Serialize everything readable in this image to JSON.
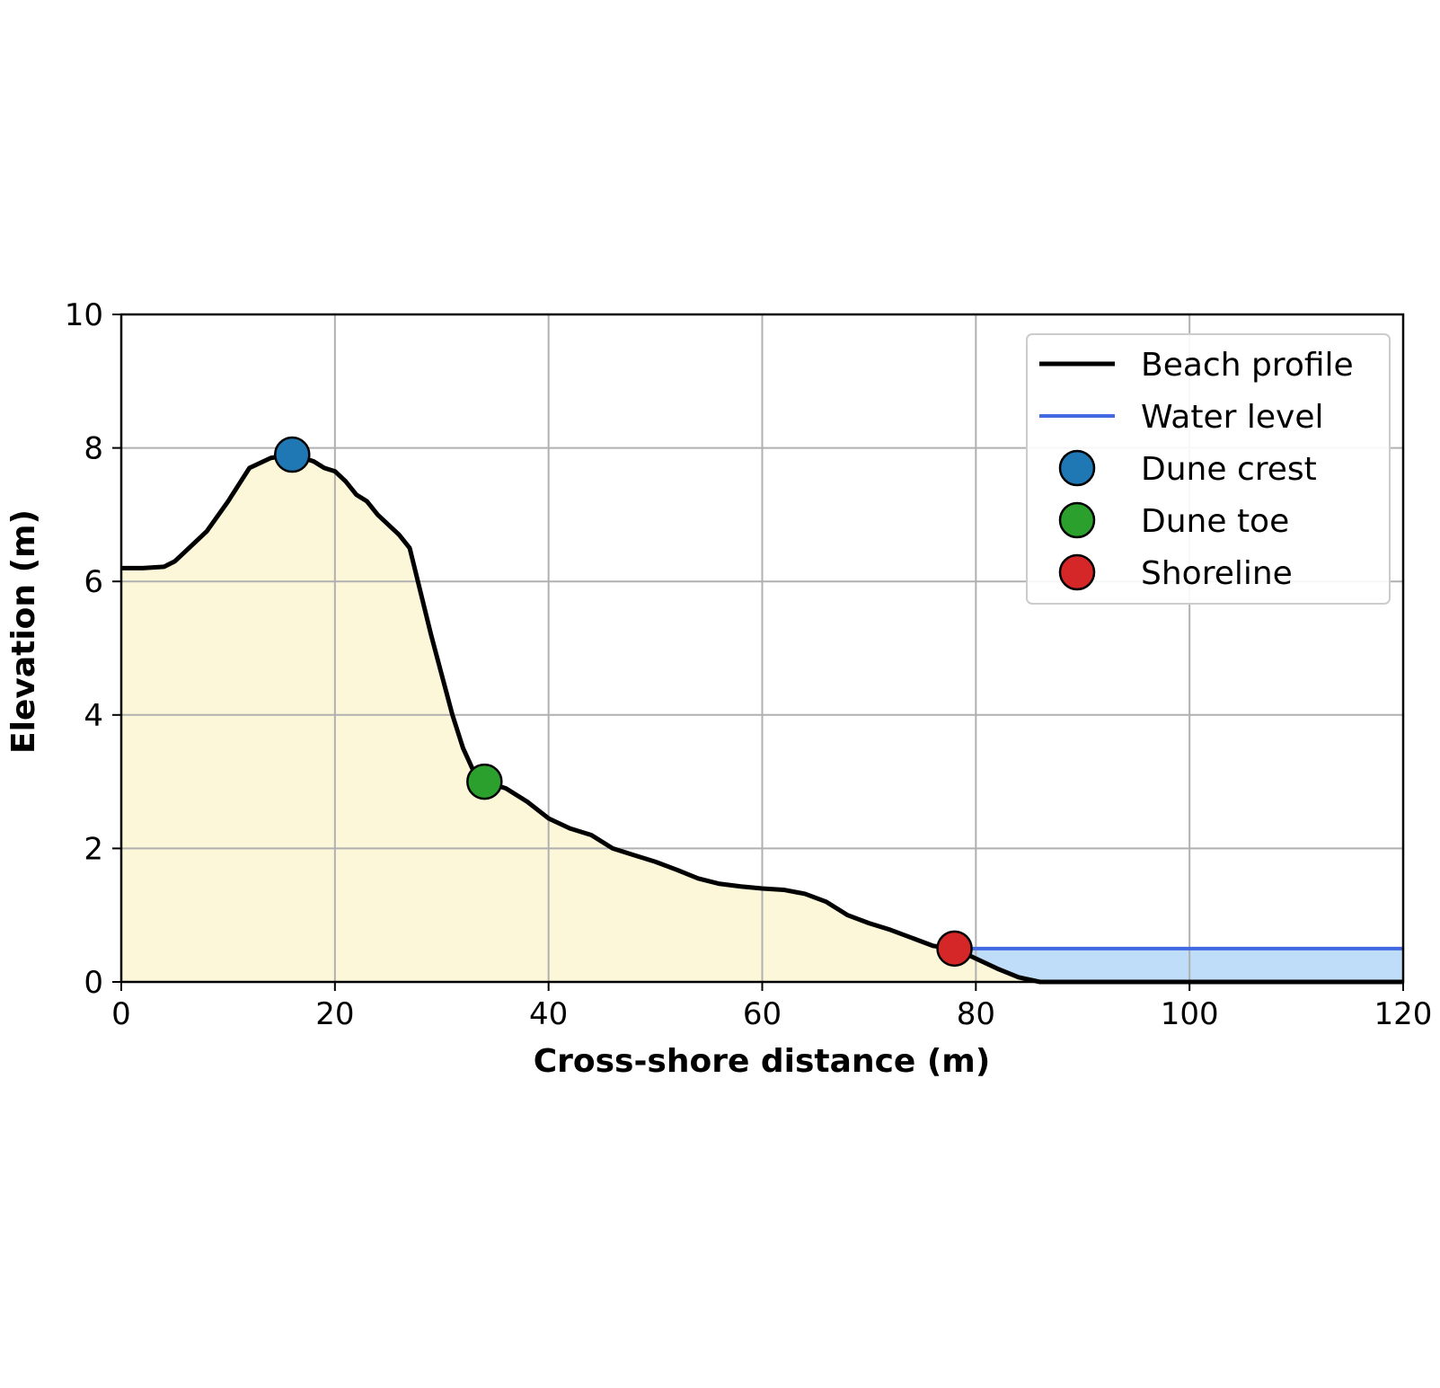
{
  "chart_data": {
    "type": "line",
    "title": "",
    "xlabel": "Cross-shore distance (m)",
    "ylabel": "Elevation (m)",
    "xlim": [
      0,
      120
    ],
    "ylim": [
      0,
      10
    ],
    "xticks": [
      "0",
      "20",
      "40",
      "60",
      "80",
      "100",
      "120"
    ],
    "yticks": [
      "0",
      "2",
      "4",
      "6",
      "8",
      "10"
    ],
    "grid": true,
    "legend_position": "top-right",
    "series": [
      {
        "name": "Beach profile",
        "kind": "line",
        "color": "#000000",
        "fill_color": "#fdf7d9",
        "x": [
          0,
          2,
          4,
          5,
          6,
          8,
          10,
          12,
          14,
          16,
          18,
          19,
          20,
          21,
          22,
          23,
          24,
          25,
          26,
          27,
          28,
          29,
          30,
          31,
          32,
          33,
          34,
          36,
          38,
          40,
          42,
          44,
          46,
          48,
          50,
          52,
          54,
          56,
          58,
          60,
          62,
          64,
          66,
          68,
          70,
          72,
          74,
          76,
          78,
          80,
          82,
          84,
          86,
          88,
          90,
          100,
          110,
          120
        ],
        "y": [
          6.2,
          6.2,
          6.22,
          6.3,
          6.45,
          6.75,
          7.2,
          7.7,
          7.85,
          7.9,
          7.8,
          7.7,
          7.65,
          7.5,
          7.3,
          7.2,
          7.0,
          6.85,
          6.7,
          6.5,
          5.85,
          5.2,
          4.6,
          4.0,
          3.5,
          3.15,
          3.0,
          2.9,
          2.7,
          2.45,
          2.3,
          2.2,
          2.0,
          1.9,
          1.8,
          1.68,
          1.55,
          1.47,
          1.43,
          1.4,
          1.38,
          1.32,
          1.2,
          1.0,
          0.88,
          0.78,
          0.66,
          0.54,
          0.5,
          0.35,
          0.2,
          0.07,
          0.0,
          0.0,
          0.0,
          0.0,
          0.0,
          0.0
        ]
      },
      {
        "name": "Water level",
        "kind": "line",
        "color": "#4169e1",
        "fill_color": "#bfdcf8",
        "x": [
          78,
          120
        ],
        "y": [
          0.5,
          0.5
        ]
      },
      {
        "name": "Dune crest",
        "kind": "point",
        "color": "#1f77b4",
        "x": [
          16
        ],
        "y": [
          7.9
        ]
      },
      {
        "name": "Dune toe",
        "kind": "point",
        "color": "#2ca02c",
        "x": [
          34
        ],
        "y": [
          3.0
        ]
      },
      {
        "name": "Shoreline",
        "kind": "point",
        "color": "#d62728",
        "x": [
          78
        ],
        "y": [
          0.5
        ]
      }
    ]
  }
}
